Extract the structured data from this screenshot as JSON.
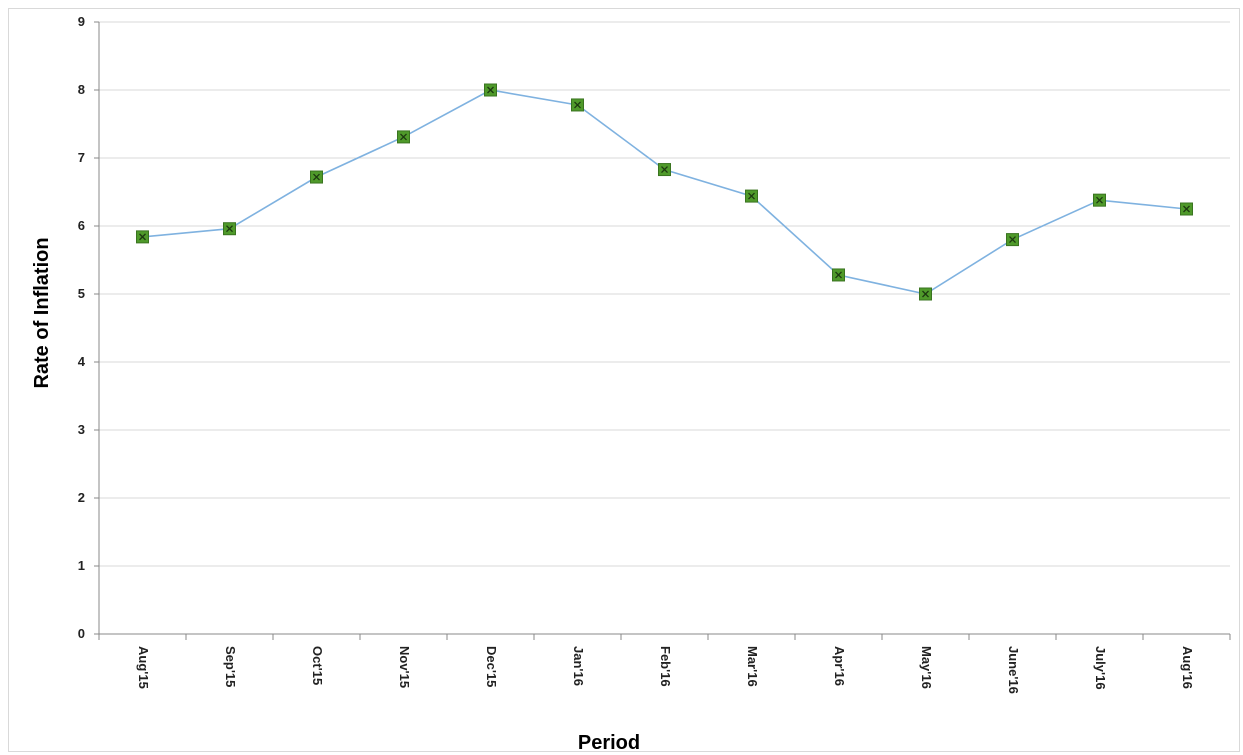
{
  "chart_data": {
    "type": "line",
    "categories": [
      "Aug'15",
      "Sep'15",
      "Oct'15",
      "Nov'15",
      "Dec'15",
      "Jan'16",
      "Feb'16",
      "Mar'16",
      "Apr'16",
      "May'16",
      "June'16",
      "July'16",
      "Aug'16"
    ],
    "series": [
      {
        "values": [
          5.84,
          5.96,
          6.72,
          7.31,
          8.0,
          7.78,
          6.83,
          6.44,
          5.28,
          5.0,
          5.8,
          6.38,
          6.25
        ]
      }
    ],
    "title": "",
    "xlabel": "Period",
    "ylabel": "Rate of Inflation",
    "ylim": [
      0,
      9
    ],
    "yticks": [
      "0",
      "1",
      "2",
      "3",
      "4",
      "5",
      "6",
      "7",
      "8",
      "9"
    ],
    "grid": true,
    "line_color": "#7fb2e0",
    "marker_color": "#4f9a2a"
  }
}
